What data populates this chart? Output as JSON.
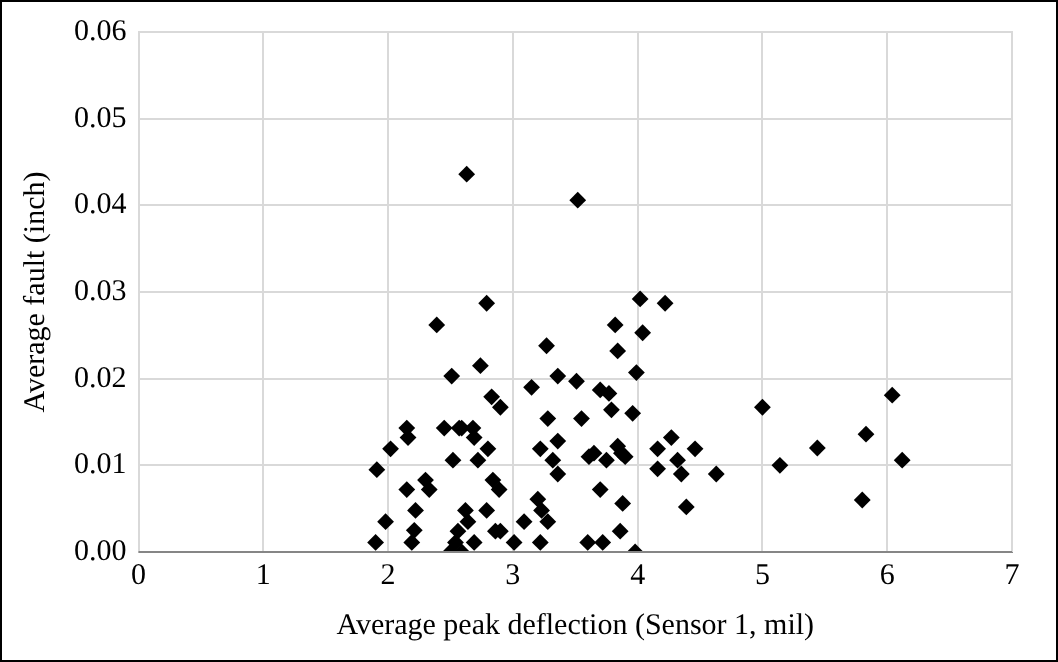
{
  "chart_data": {
    "type": "scatter",
    "xlabel": "Average peak deflection (Sensor 1, mil)",
    "ylabel": "Average fault (inch)",
    "xlim": [
      0,
      7
    ],
    "xticks": [
      0,
      1,
      2,
      3,
      4,
      5,
      6,
      7
    ],
    "ylim": [
      0,
      0.06
    ],
    "yticks": [
      {
        "value": 0,
        "label": "0.00"
      },
      {
        "value": 0.01,
        "label": "0.01"
      },
      {
        "value": 0.02,
        "label": "0.02"
      },
      {
        "value": 0.03,
        "label": "0.03"
      },
      {
        "value": 0.04,
        "label": "0.04"
      },
      {
        "value": 0.05,
        "label": "0.05"
      },
      {
        "value": 0.06,
        "label": "0.06"
      }
    ],
    "grid": true,
    "legend": false,
    "marker": "diamond",
    "series": [
      {
        "color": "#000000",
        "x": [
          1.91,
          1.9,
          1.98,
          2.02,
          2.15,
          2.16,
          2.15,
          2.19,
          2.21,
          2.22,
          2.3,
          2.33,
          2.39,
          2.45,
          2.51,
          2.52,
          2.5,
          2.54,
          2.56,
          2.59,
          2.57,
          2.59,
          2.63,
          2.62,
          2.64,
          2.68,
          2.69,
          2.69,
          2.72,
          2.74,
          2.79,
          2.8,
          2.79,
          2.83,
          2.84,
          2.89,
          2.9,
          2.86,
          2.9,
          3.01,
          3.09,
          3.15,
          3.2,
          3.23,
          3.22,
          3.22,
          3.27,
          3.28,
          3.28,
          3.32,
          3.36,
          3.36,
          3.36,
          3.51,
          3.52,
          3.55,
          3.6,
          3.61,
          3.65,
          3.7,
          3.7,
          3.72,
          3.75,
          3.77,
          3.79,
          3.82,
          3.84,
          3.84,
          3.86,
          3.87,
          3.88,
          3.9,
          3.98,
          3.96,
          3.99,
          4.02,
          4.04,
          4.16,
          4.16,
          4.22,
          4.27,
          4.32,
          4.35,
          4.39,
          4.46,
          4.63,
          5.0,
          5.14,
          5.44,
          5.8,
          5.83,
          6.04,
          6.12
        ],
        "values": [
          0.0095,
          0.0011,
          0.0035,
          0.0119,
          0.0143,
          0.0132,
          0.0072,
          0.0011,
          0.0025,
          0.0048,
          0.0083,
          0.0072,
          0.0262,
          0.0143,
          0.0203,
          0.0106,
          0.0,
          0.0011,
          0.0024,
          0.0,
          0.0143,
          0.0143,
          0.0436,
          0.0048,
          0.0035,
          0.0143,
          0.0132,
          0.0011,
          0.0106,
          0.0215,
          0.0287,
          0.0119,
          0.0048,
          0.0179,
          0.0083,
          0.0072,
          0.0167,
          0.0024,
          0.0024,
          0.0011,
          0.0035,
          0.019,
          0.0061,
          0.0048,
          0.0119,
          0.0011,
          0.0238,
          0.0154,
          0.0035,
          0.0106,
          0.0203,
          0.0128,
          0.009,
          0.0197,
          0.0406,
          0.0154,
          0.0011,
          0.011,
          0.0114,
          0.0072,
          0.0187,
          0.0011,
          0.0106,
          0.0183,
          0.0164,
          0.0262,
          0.0232,
          0.0122,
          0.0024,
          0.0114,
          0.0056,
          0.011,
          0.0,
          0.016,
          0.0207,
          0.0292,
          0.0253,
          0.0119,
          0.0096,
          0.0287,
          0.0132,
          0.0106,
          0.009,
          0.0052,
          0.0119,
          0.009,
          0.0167,
          0.01,
          0.012,
          0.006,
          0.0136,
          0.0181,
          0.0106
        ]
      }
    ]
  }
}
